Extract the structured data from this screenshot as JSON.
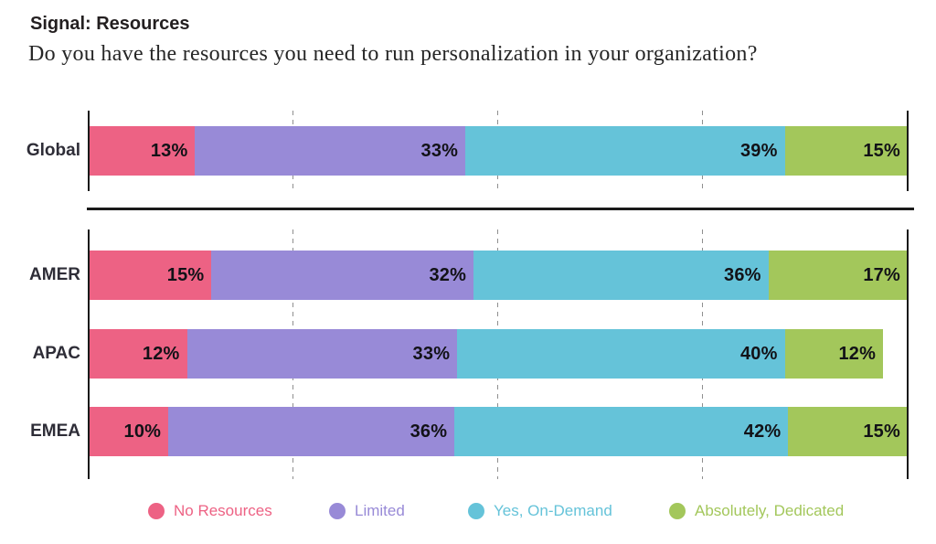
{
  "header": {
    "title": "Signal: Resources",
    "subtitle": "Do you have the resources you need to run personalization in your organization?"
  },
  "chart_data": {
    "type": "bar",
    "orientation": "horizontal",
    "stacked": true,
    "unit": "%",
    "xlim": [
      0,
      100
    ],
    "gridlines_percent": [
      25,
      50,
      75
    ],
    "grid_style": "dashed-vertical",
    "legend_position": "bottom",
    "categories": [
      "Global",
      "AMER",
      "APAC",
      "EMEA"
    ],
    "row_groups": [
      [
        "Global"
      ],
      [
        "AMER",
        "APAC",
        "EMEA"
      ]
    ],
    "series": [
      {
        "name": "No Resources",
        "color": "#ED6284",
        "values": [
          13,
          15,
          12,
          10
        ]
      },
      {
        "name": "Limited",
        "color": "#988AD7",
        "values": [
          33,
          32,
          33,
          36
        ]
      },
      {
        "name": "Yes, On-Demand",
        "color": "#65C3D9",
        "values": [
          39,
          36,
          40,
          42
        ]
      },
      {
        "name": "Absolutely, Dedicated",
        "color": "#A3C75B",
        "values": [
          15,
          17,
          12,
          15
        ]
      }
    ],
    "data_label_format": "{value}%"
  },
  "style": {
    "axis_color": "#1a1a1a",
    "gridline_color": "#8f8f8f",
    "title_color": "#231f20",
    "subtitle_color": "#262626",
    "row_label_color": "#2e2d37",
    "data_label_color": "#121217",
    "background": "#ffffff"
  }
}
